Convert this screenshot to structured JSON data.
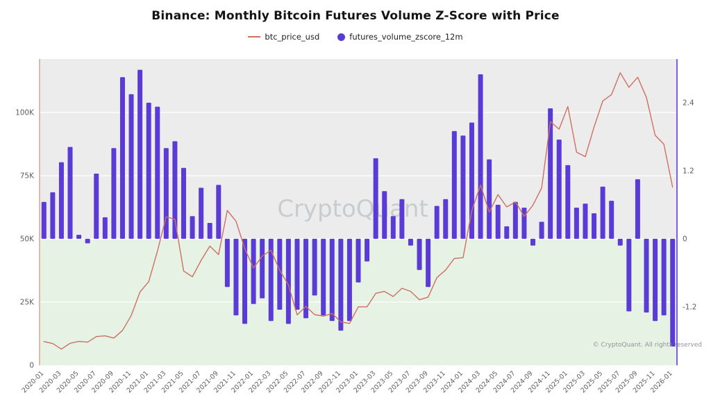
{
  "title": "Binance: Monthly Bitcoin Futures Volume Z-Score with Price",
  "legend": {
    "price_label": "btc_price_usd",
    "zscore_label": "futures_volume_zscore_12m"
  },
  "watermark": "CryptoQuant",
  "copyright": "© CryptoQuant. All rights reserved",
  "colors": {
    "price_line": "#ce6f62",
    "zscore_bar": "#5b3bd5",
    "bg_above_zero": "#ececec",
    "bg_below_zero": "#e6f2e4",
    "grid": "#ffffff",
    "axis_text": "#5c5c5c",
    "left_spine": "#dca69d",
    "right_spine": "#5b3bd5",
    "watermark_text": "#aeb2b6"
  },
  "chart_data": {
    "type": "bar+line",
    "title": "Binance: Monthly Bitcoin Futures Volume Z-Score with Price",
    "legend_position": "top",
    "grid": true,
    "x": [
      "2020-01",
      "2020-02",
      "2020-03",
      "2020-04",
      "2020-05",
      "2020-06",
      "2020-07",
      "2020-08",
      "2020-09",
      "2020-10",
      "2020-11",
      "2020-12",
      "2021-01",
      "2021-02",
      "2021-03",
      "2021-04",
      "2021-05",
      "2021-06",
      "2021-07",
      "2021-08",
      "2021-09",
      "2021-10",
      "2021-11",
      "2021-12",
      "2022-01",
      "2022-02",
      "2022-03",
      "2022-04",
      "2022-05",
      "2022-06",
      "2022-07",
      "2022-08",
      "2022-09",
      "2022-10",
      "2022-11",
      "2022-12",
      "2023-01",
      "2023-02",
      "2023-03",
      "2023-04",
      "2023-05",
      "2023-06",
      "2023-07",
      "2023-08",
      "2023-09",
      "2023-10",
      "2023-11",
      "2023-12",
      "2024-01",
      "2024-02",
      "2024-03",
      "2024-04",
      "2024-05",
      "2024-06",
      "2024-07",
      "2024-08",
      "2024-09",
      "2024-10",
      "2024-11",
      "2024-12",
      "2025-01",
      "2025-02",
      "2025-03",
      "2025-04",
      "2025-05",
      "2025-06",
      "2025-07",
      "2025-08",
      "2025-09",
      "2025-10",
      "2025-11",
      "2025-12",
      "2026-01"
    ],
    "x_tick_every": 2,
    "series": [
      {
        "name": "btc_price_usd",
        "type": "line",
        "axis": "left",
        "unit": "USD",
        "values": [
          9400,
          8600,
          6400,
          8700,
          9450,
          9140,
          11350,
          11650,
          10780,
          13800,
          19700,
          29000,
          33100,
          45200,
          58800,
          57750,
          37300,
          35040,
          41500,
          47150,
          43800,
          61300,
          57000,
          46200,
          38480,
          43200,
          45540,
          37650,
          31790,
          19940,
          23300,
          20050,
          19430,
          20490,
          17170,
          16540,
          23130,
          23140,
          28480,
          29230,
          27220,
          30480,
          29230,
          25940,
          26970,
          34670,
          37720,
          42270,
          42580,
          61200,
          71330,
          60640,
          67540,
          62670,
          64620,
          58970,
          63330,
          70220,
          96450,
          93430,
          102400,
          84350,
          82550,
          94210,
          104600,
          107130,
          115760,
          110000,
          114000,
          106000,
          91000,
          87500,
          70500
        ]
      },
      {
        "name": "futures_volume_zscore_12m",
        "type": "bar",
        "axis": "right",
        "unit": "z-score",
        "values": [
          0.65,
          0.82,
          1.35,
          1.62,
          0.07,
          -0.08,
          1.15,
          0.38,
          1.6,
          2.85,
          2.55,
          2.98,
          2.4,
          2.33,
          1.6,
          1.72,
          1.25,
          0.4,
          0.9,
          0.28,
          0.95,
          -0.85,
          -1.35,
          -1.5,
          -1.15,
          -1.05,
          -1.45,
          -1.25,
          -1.5,
          -1.25,
          -1.4,
          -1.0,
          -1.35,
          -1.45,
          -1.62,
          -1.45,
          -0.77,
          -0.4,
          1.42,
          0.84,
          0.4,
          0.7,
          -0.12,
          -0.55,
          -0.85,
          0.58,
          0.7,
          1.9,
          1.82,
          2.05,
          2.9,
          1.4,
          0.6,
          0.22,
          0.65,
          0.55,
          -0.12,
          0.3,
          2.3,
          1.75,
          1.3,
          0.55,
          0.62,
          0.45,
          0.92,
          0.67,
          -0.12,
          -1.28,
          1.05,
          -1.3,
          -1.45,
          -1.35,
          -1.9
        ]
      }
    ],
    "left_axis": {
      "label": "",
      "ticks": [
        0,
        25000,
        50000,
        75000,
        100000
      ],
      "tick_labels": [
        "0",
        "25K",
        "50K",
        "75K",
        "100K"
      ],
      "range": [
        0,
        121200
      ]
    },
    "right_axis": {
      "label": "",
      "ticks": [
        -1.2,
        0,
        1.2,
        2.4
      ],
      "tick_labels": [
        "-1.2",
        "0",
        "1.2",
        "2.4"
      ],
      "range": [
        -2.23,
        3.17
      ]
    }
  }
}
